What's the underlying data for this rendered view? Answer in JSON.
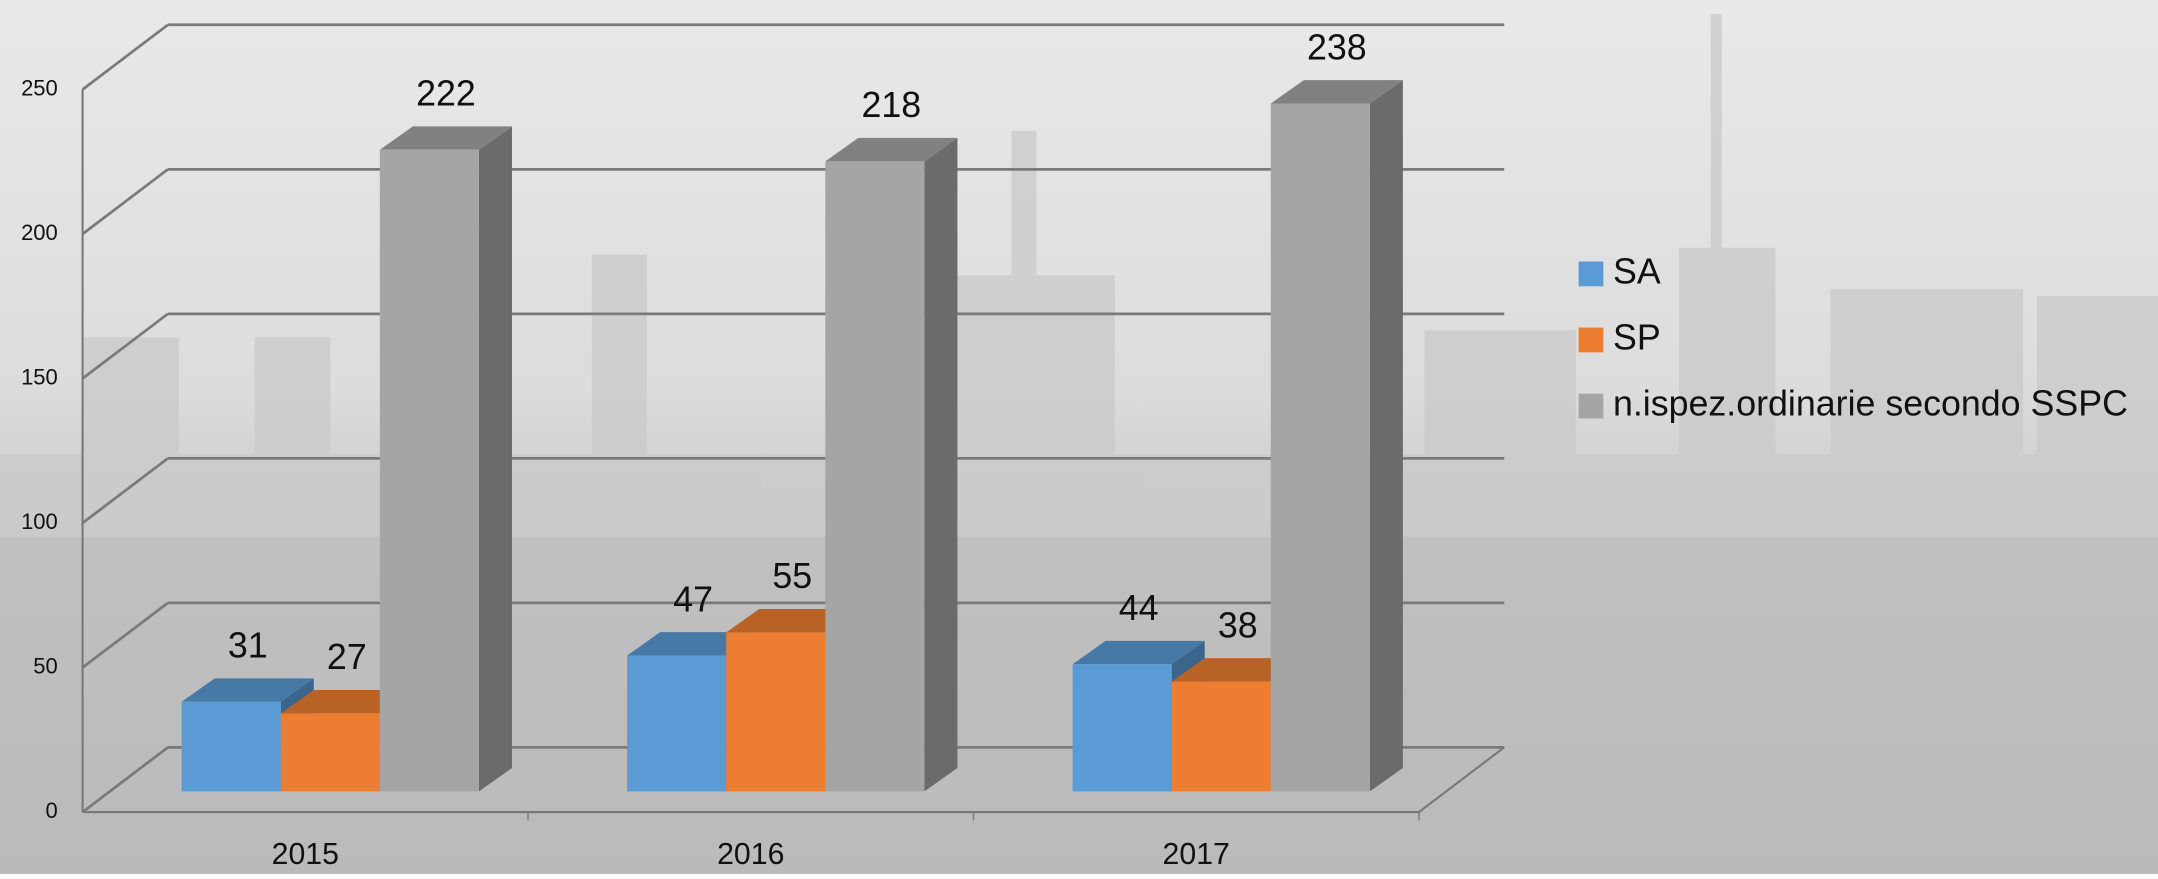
{
  "chart_data": {
    "type": "bar3d",
    "categories": [
      "2015",
      "2016",
      "2017"
    ],
    "series": [
      {
        "name": "SA",
        "color": "#5b9bd5",
        "values": [
          31,
          47,
          44
        ]
      },
      {
        "name": "SP",
        "color": "#ed7d31",
        "values": [
          27,
          55,
          38
        ]
      },
      {
        "name": "n.ispez.ordinarie secondo SSPC",
        "color": "#a5a5a5",
        "values": [
          222,
          218,
          238
        ]
      }
    ],
    "ylim": [
      0,
      250
    ],
    "yticks": [
      0,
      50,
      100,
      150,
      200,
      250
    ],
    "grid": true,
    "legend": "right"
  }
}
